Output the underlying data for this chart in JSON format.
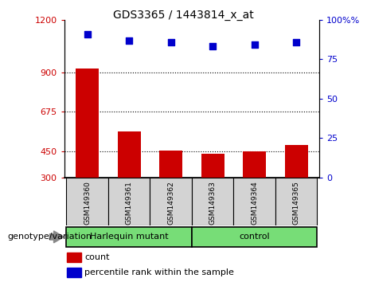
{
  "title": "GDS3365 / 1443814_x_at",
  "samples": [
    "GSM149360",
    "GSM149361",
    "GSM149362",
    "GSM149363",
    "GSM149364",
    "GSM149365"
  ],
  "bar_values": [
    920,
    565,
    455,
    435,
    450,
    485
  ],
  "scatter_values": [
    91,
    87,
    86,
    83,
    84,
    86
  ],
  "ylim_left": [
    300,
    1200
  ],
  "yticks_left": [
    300,
    450,
    675,
    900,
    1200
  ],
  "ylim_right": [
    0,
    100
  ],
  "yticks_right": [
    0,
    25,
    50,
    75,
    100
  ],
  "bar_color": "#cc0000",
  "scatter_color": "#0000cc",
  "group1_label": "Harlequin mutant",
  "group2_label": "control",
  "group_color": "#77dd77",
  "group_label_text": "genotype/variation",
  "legend_count": "count",
  "legend_percentile": "percentile rank within the sample",
  "sample_box_color": "#d3d3d3",
  "bar_width": 0.55
}
